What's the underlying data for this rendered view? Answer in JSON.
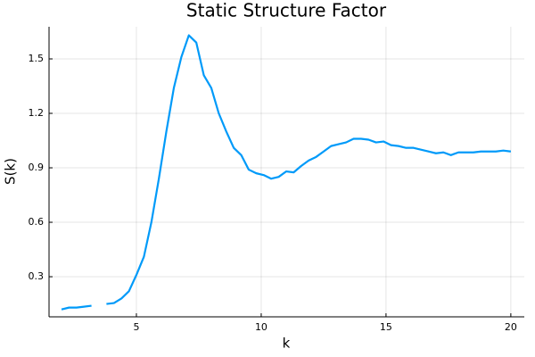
{
  "chart_data": {
    "type": "line",
    "title": "Static Structure Factor",
    "x_label": "k",
    "y_label": "S(k)",
    "x": [
      2.0,
      2.3,
      2.6,
      2.9,
      3.2,
      3.5,
      3.8,
      4.1,
      4.4,
      4.7,
      5.0,
      5.3,
      5.6,
      5.9,
      6.2,
      6.5,
      6.8,
      7.1,
      7.4,
      7.7,
      8.0,
      8.3,
      8.6,
      8.9,
      9.2,
      9.5,
      9.8,
      10.1,
      10.4,
      10.7,
      11.0,
      11.3,
      11.6,
      11.9,
      12.2,
      12.5,
      12.8,
      13.1,
      13.4,
      13.7,
      14.0,
      14.3,
      14.6,
      14.9,
      15.2,
      15.5,
      15.8,
      16.1,
      16.4,
      16.7,
      17.0,
      17.3,
      17.6,
      17.9,
      18.2,
      18.5,
      18.8,
      19.1,
      19.4,
      19.7,
      20.0
    ],
    "series": [
      {
        "name": "S(k)",
        "color": "#009af9",
        "values": [
          0.12,
          0.13,
          0.13,
          0.135,
          0.14,
          null,
          0.15,
          0.155,
          0.18,
          0.22,
          0.31,
          0.41,
          0.6,
          0.84,
          1.1,
          1.34,
          1.51,
          1.63,
          1.59,
          1.41,
          1.34,
          1.2,
          1.1,
          1.01,
          0.97,
          0.89,
          0.87,
          0.86,
          0.84,
          0.85,
          0.88,
          0.875,
          0.91,
          0.94,
          0.96,
          0.99,
          1.02,
          1.03,
          1.04,
          1.06,
          1.06,
          1.055,
          1.04,
          1.045,
          1.025,
          1.02,
          1.01,
          1.01,
          1.0,
          0.99,
          0.98,
          0.985,
          0.97,
          0.985,
          0.985,
          0.985,
          0.99,
          0.99,
          0.99,
          0.995,
          0.99
        ]
      }
    ],
    "xlim": [
      1.5,
      20.54
    ],
    "ylim": [
      0.079,
      1.677
    ],
    "xticks": [
      5,
      10,
      15,
      20
    ],
    "yticks": [
      {
        "value": 0.3,
        "label": "0.3"
      },
      {
        "value": 0.6,
        "label": "0.6"
      },
      {
        "value": 0.9,
        "label": "0.9"
      },
      {
        "value": 1.2,
        "label": "1.2"
      },
      {
        "value": 1.5,
        "label": "1.5"
      }
    ],
    "grid": true
  }
}
